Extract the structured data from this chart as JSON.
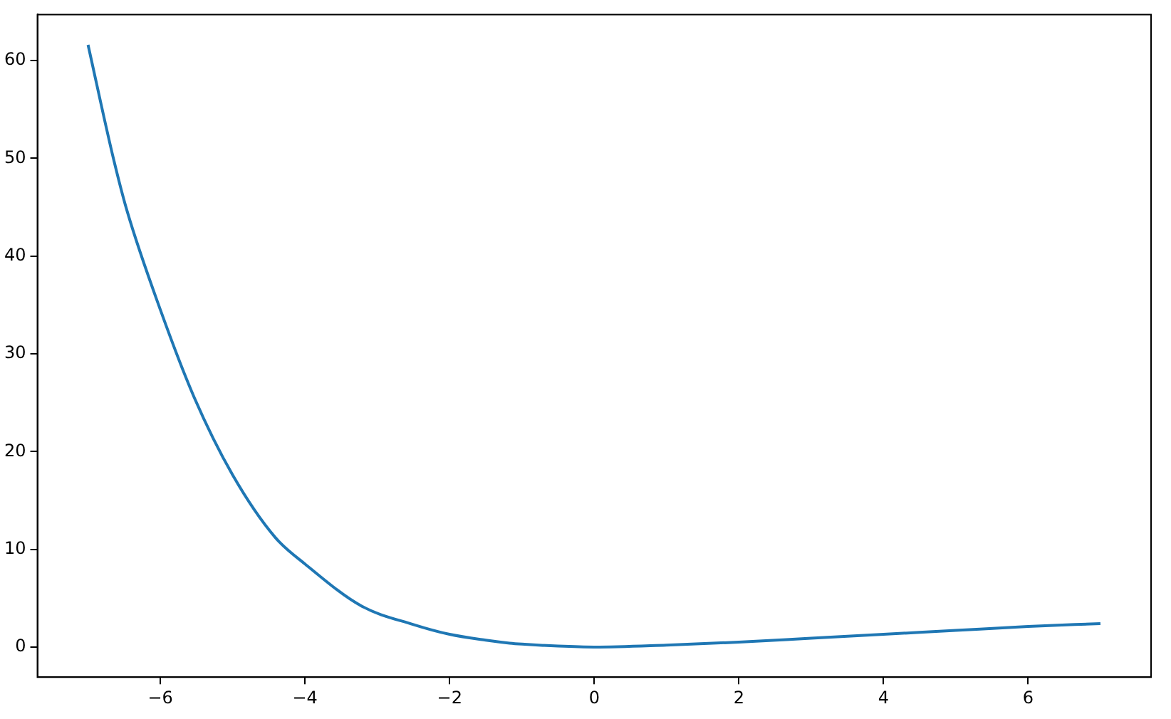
{
  "chart_data": {
    "type": "line",
    "x": [
      -7,
      -6.65,
      -6.46,
      -6,
      -5.53,
      -5,
      -4.41,
      -4,
      -3.22,
      -2.5,
      -2,
      -1.5,
      -1.17,
      -1,
      -0.5,
      0,
      1,
      2,
      3,
      4,
      5,
      6,
      7
    ],
    "series": [
      {
        "color": "#1f77b4",
        "values": [
          61.6,
          50,
          44.6,
          34.5,
          25.5,
          17.6,
          11.2,
          8.5,
          4.2,
          2.3,
          1.3,
          0.7,
          0.4,
          0.3,
          0.1,
          0,
          0.2,
          0.5,
          0.9,
          1.3,
          1.7,
          2.1,
          2.4
        ]
      }
    ],
    "xlim": [
      -7.7,
      7.7
    ],
    "ylim": [
      -3.08,
      64.7
    ],
    "xticks": [
      {
        "value": -6,
        "label": "−6"
      },
      {
        "value": -4,
        "label": "−4"
      },
      {
        "value": -2,
        "label": "−2"
      },
      0,
      2,
      4,
      6
    ],
    "yticks": [
      0,
      10,
      20,
      30,
      40,
      50,
      60
    ],
    "grid": false,
    "legend": false,
    "marker": "none",
    "line_style": "solid"
  }
}
